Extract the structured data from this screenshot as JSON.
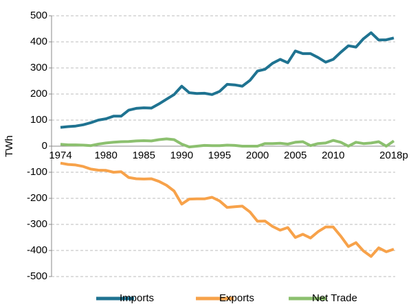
{
  "chart_data": {
    "type": "line",
    "y_label": "TWh",
    "categories": [
      "1974",
      null,
      null,
      null,
      null,
      null,
      "1980",
      null,
      null,
      null,
      null,
      "1985",
      null,
      null,
      null,
      null,
      "1990",
      null,
      null,
      null,
      null,
      "1995",
      null,
      null,
      null,
      null,
      "2000",
      null,
      null,
      null,
      null,
      "2005",
      null,
      null,
      null,
      null,
      "2010",
      null,
      null,
      null,
      null,
      null,
      null,
      null,
      "2018p"
    ],
    "series": [
      {
        "name": "Imports",
        "color": "#1f7391",
        "values": [
          72,
          75,
          77,
          82,
          90,
          100,
          105,
          115,
          115,
          138,
          145,
          147,
          146,
          162,
          180,
          198,
          230,
          205,
          202,
          203,
          198,
          210,
          237,
          235,
          230,
          252,
          288,
          295,
          318,
          333,
          320,
          365,
          355,
          355,
          340,
          322,
          333,
          360,
          385,
          380,
          412,
          435,
          407,
          408,
          415
        ]
      },
      {
        "name": "Exports",
        "color": "#f7a24a",
        "values": [
          -65,
          -70,
          -72,
          -78,
          -88,
          -92,
          -93,
          -100,
          -98,
          -120,
          -125,
          -126,
          -125,
          -135,
          -150,
          -172,
          -222,
          -203,
          -202,
          -202,
          -196,
          -210,
          -235,
          -232,
          -230,
          -252,
          -288,
          -287,
          -308,
          -322,
          -312,
          -350,
          -338,
          -352,
          -328,
          -310,
          -310,
          -345,
          -385,
          -370,
          -402,
          -423,
          -390,
          -405,
          -395
        ]
      },
      {
        "name": "Net Trade",
        "color": "#8cc06f",
        "values": [
          7,
          5,
          5,
          4,
          2,
          8,
          12,
          15,
          17,
          18,
          20,
          21,
          20,
          25,
          28,
          25,
          8,
          -3,
          0,
          3,
          2,
          2,
          4,
          3,
          0,
          0,
          0,
          10,
          10,
          11,
          8,
          15,
          17,
          2,
          10,
          12,
          22,
          15,
          0,
          15,
          10,
          12,
          17,
          0,
          20
        ]
      }
    ],
    "ylim": [
      -500,
      500
    ],
    "yticks": [
      -500,
      -400,
      -300,
      -200,
      -100,
      0,
      100,
      200,
      300,
      400,
      500
    ],
    "grid": true,
    "legend": "bottom"
  }
}
